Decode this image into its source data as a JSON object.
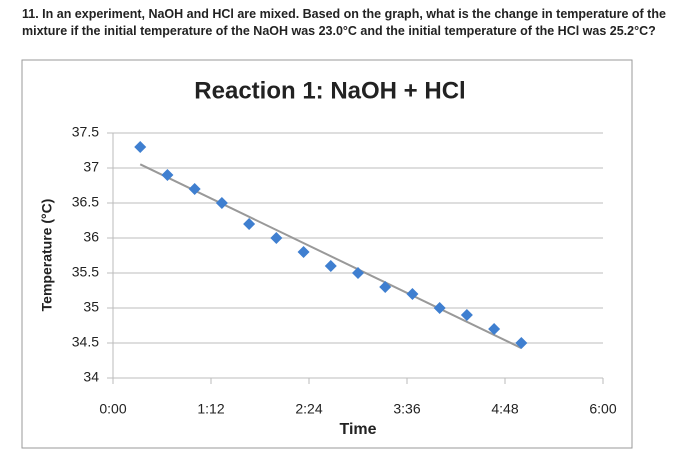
{
  "question": "11. In an experiment, NaOH and HCl are mixed. Based on the graph, what is the change in temperature of the mixture if the initial temperature of the NaOH was 23.0°C and the initial temperature of the HCl was 25.2°C?",
  "chart_data": {
    "type": "scatter",
    "title": "Reaction 1: NaOH + HCl",
    "x_label": "Time",
    "y_label": "Temperature (°C)",
    "series": [
      {
        "name": "Temperature",
        "color": "#3f7fd0",
        "x": [
          20,
          40,
          60,
          80,
          100,
          120,
          140,
          160,
          180,
          200,
          220,
          240,
          260,
          280,
          300
        ],
        "values": [
          37.3,
          36.9,
          36.7,
          36.5,
          36.2,
          36.0,
          35.8,
          35.6,
          35.5,
          35.3,
          35.2,
          35.0,
          34.9,
          34.7,
          34.5
        ]
      }
    ],
    "xlim": [
      0,
      360
    ],
    "xticks": [
      {
        "value": 0,
        "label": "0:00"
      },
      {
        "value": 72,
        "label": "1:12"
      },
      {
        "value": 144,
        "label": "2:24"
      },
      {
        "value": 216,
        "label": "3:36"
      },
      {
        "value": 288,
        "label": "4:48"
      },
      {
        "value": 360,
        "label": "6:00"
      }
    ],
    "ylim": [
      34,
      37.5
    ],
    "yticks": [
      34,
      34.5,
      35,
      35.5,
      36,
      36.5,
      37,
      37.5
    ],
    "grid": true,
    "trendline": true,
    "trendline_color": "#999999"
  }
}
